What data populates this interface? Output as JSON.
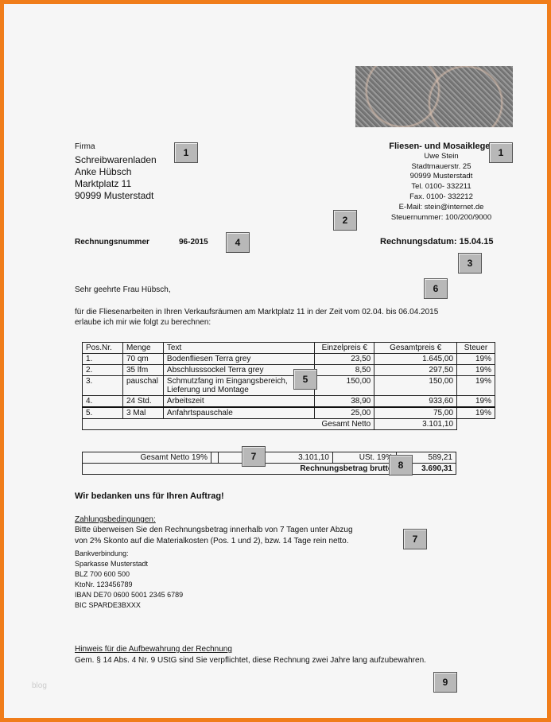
{
  "recipient": {
    "l1": "Firma",
    "l2": "Schreibwarenladen",
    "l3": "Anke Hübsch",
    "l4": "Marktplatz 11",
    "l5": "90999 Musterstadt"
  },
  "sender": {
    "title": "Fliesen- und Mosaikleger",
    "name": "Uwe Stein",
    "street": "Stadtmauerstr. 25",
    "city": "90999 Musterstadt",
    "tel": "Tel. 0100- 332211",
    "fax": "Fax. 0100- 332212",
    "email": "E-Mail: stein@internet.de",
    "tax": "Steuernummer: 100/200/9000"
  },
  "invoice": {
    "number_label": "Rechnungsnummer",
    "number": "96-2015",
    "date": "Rechnungsdatum: 15.04.15"
  },
  "greeting": "Sehr geehrte Frau Hübsch,",
  "intro1": "für die Fliesenarbeiten in Ihren Verkaufsräumen am Marktplatz 11 in der Zeit vom 02.04. bis 06.04.2015",
  "intro2": "erlaube ich mir wie folgt zu berechnen:",
  "table": {
    "headers": [
      "Pos.Nr.",
      "Menge",
      "Text",
      "Einzelpreis €",
      "Gesamtpreis €",
      "Steuer"
    ],
    "rows": [
      [
        "1.",
        "70 qm",
        "Bodenfliesen Terra grey",
        "23,50",
        "1.645,00",
        "19%"
      ],
      [
        "2.",
        "35 lfm",
        "Abschlusssockel Terra grey",
        "8,50",
        "297,50",
        "19%"
      ],
      [
        "3.",
        "pauschal",
        "Schmutzfang im Eingangsbereich, Lieferung und Montage",
        "150,00",
        "150,00",
        "19%"
      ],
      [
        "4.",
        "24 Std.",
        "Arbeitszeit",
        "38,90",
        "933,60",
        "19%"
      ],
      [
        "5.",
        "3 Mal",
        "Anfahrtspauschale",
        "25,00",
        "75,00",
        "19%"
      ]
    ],
    "net_label": "Gesamt Netto",
    "net": "3.101,10"
  },
  "summary": {
    "net_label": "Gesamt Netto 19%",
    "net": "3.101,10",
    "vat_label": "USt. 19%",
    "vat": "589,21",
    "gross_label": "Rechnungsbetrag brutto",
    "gross": "3.690,31"
  },
  "thanks": "Wir bedanken uns für Ihren Auftrag!",
  "payment": {
    "heading": "Zahlungsbedingungen:",
    "l1": "Bitte überweisen Sie den Rechnungsbetrag innerhalb von 7 Tagen unter Abzug",
    "l2": "von 2% Skonto auf die Materialkosten (Pos. 1 und 2), bzw. 14 Tage rein netto.",
    "bank": [
      "Bankverbindung:",
      "Sparkasse Musterstadt",
      "BLZ 700 600 500",
      "KtoNr. 123456789",
      "IBAN DE70 0600 5001 2345 6789",
      "BIC SPARDE3BXXX"
    ]
  },
  "notice": {
    "heading": "Hinweis für die Aufbewahrung der Rechnung",
    "text": "Gem. § 14 Abs. 4 Nr. 9 UStG sind Sie verpflichtet, diese Rechnung zwei Jahre lang aufzubewahren."
  },
  "badges": [
    "1",
    "1",
    "2",
    "3",
    "4",
    "5",
    "6",
    "7",
    "7",
    "8",
    "9"
  ],
  "watermark": "blog",
  "colors": {
    "border": "#f07d1a",
    "badge": "#b8b8b8"
  }
}
